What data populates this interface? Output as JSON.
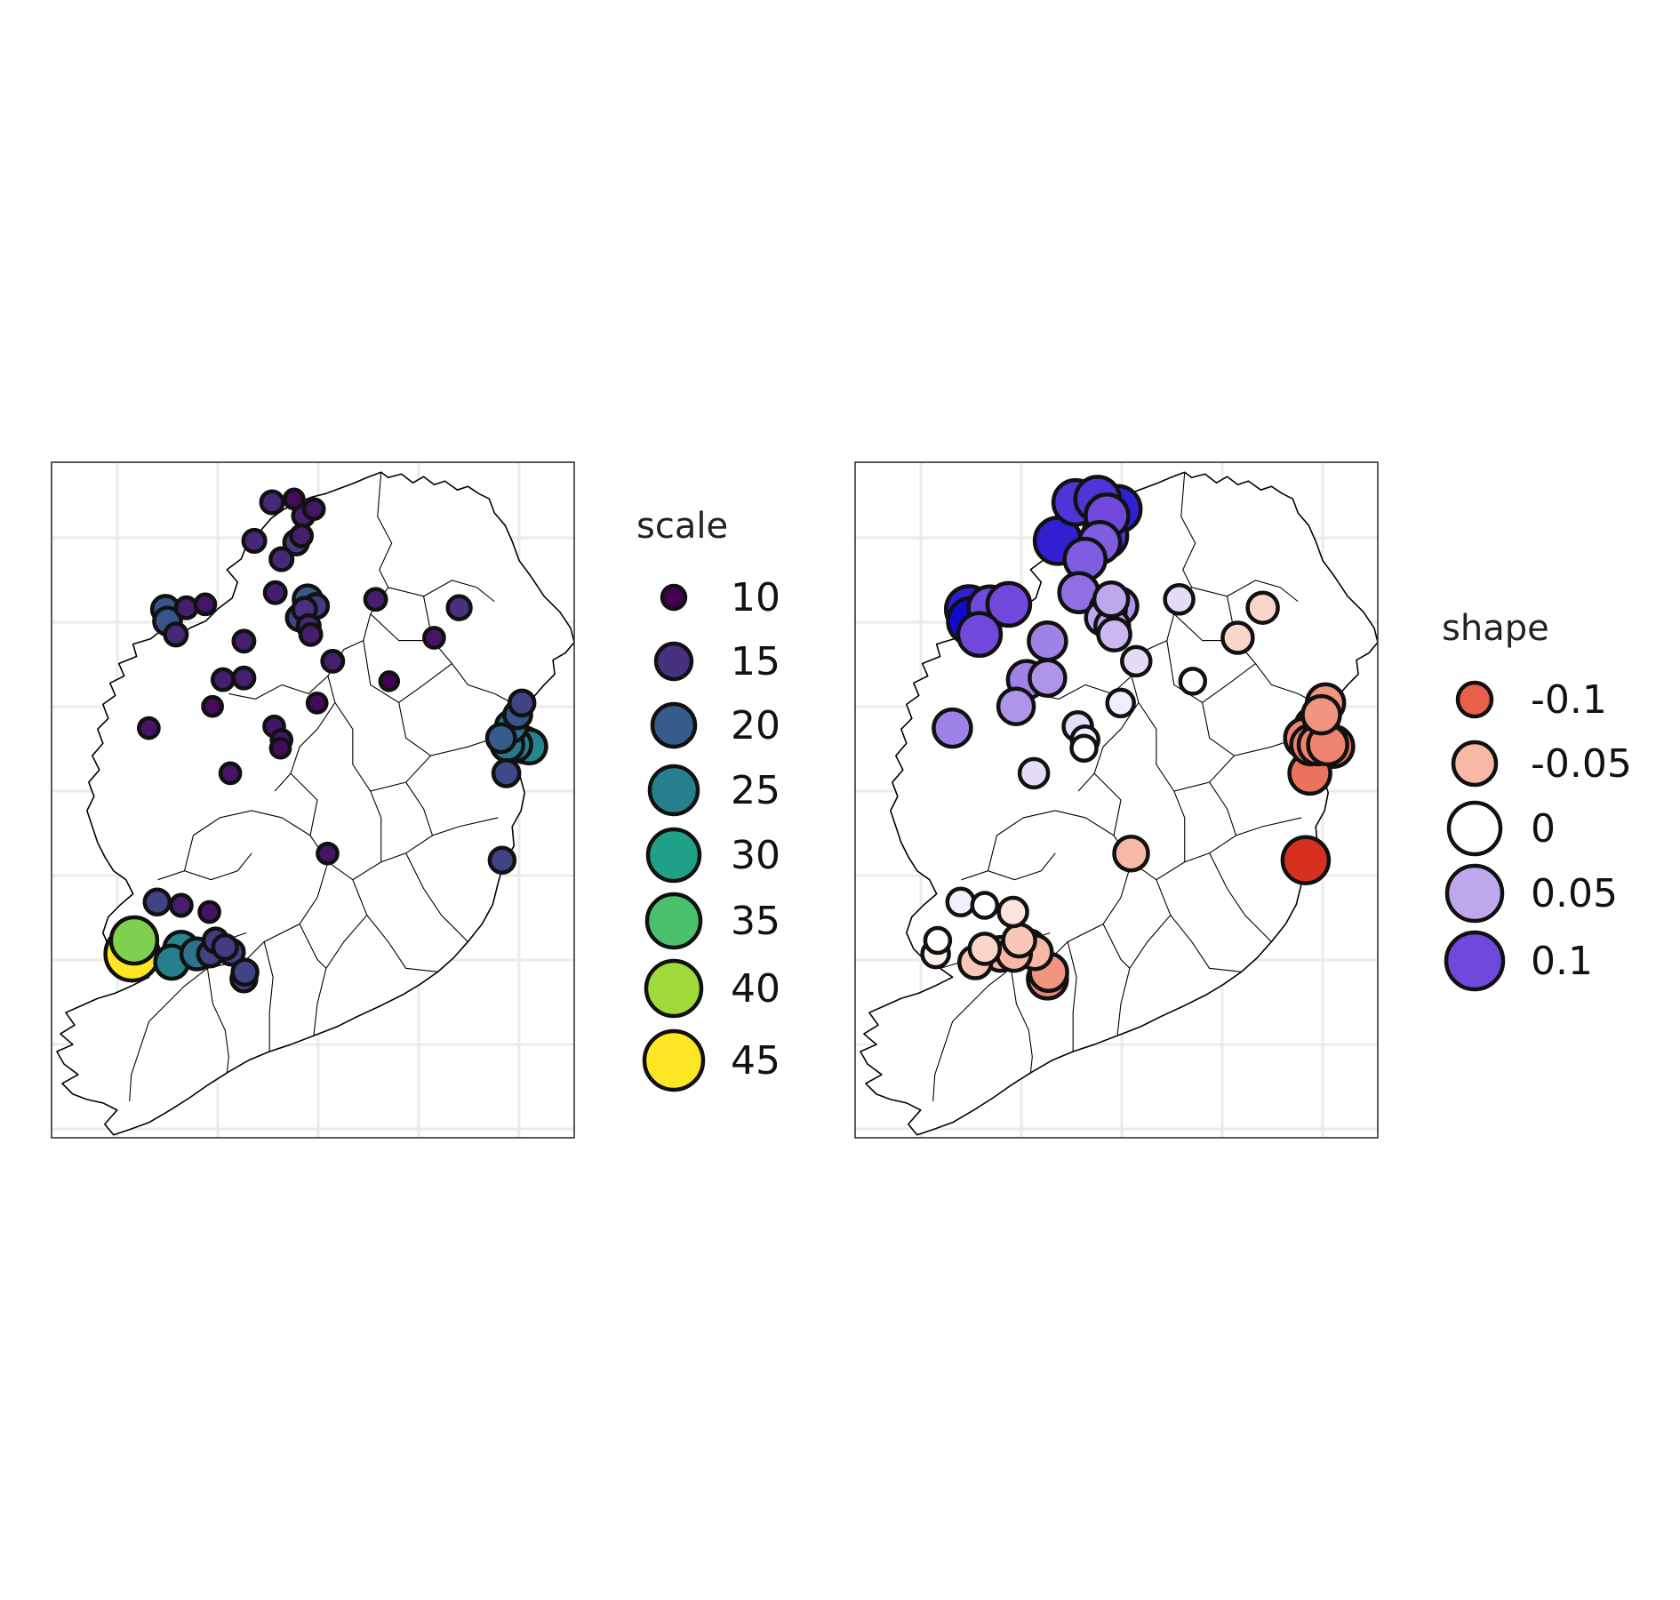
{
  "figure": {
    "panels": [
      {
        "id": "scale",
        "legend": {
          "title": "scale",
          "items": [
            {
              "label": "10",
              "value": 10,
              "color": "#440154"
            },
            {
              "label": "15",
              "value": 15,
              "color": "#46327e"
            },
            {
              "label": "20",
              "value": 20,
              "color": "#365c8d"
            },
            {
              "label": "25",
              "value": 25,
              "color": "#277f8e"
            },
            {
              "label": "30",
              "value": 30,
              "color": "#1fa187"
            },
            {
              "label": "35",
              "value": 35,
              "color": "#4ac16d"
            },
            {
              "label": "40",
              "value": 40,
              "color": "#a0da39"
            },
            {
              "label": "45",
              "value": 45,
              "color": "#fde725"
            }
          ]
        }
      },
      {
        "id": "shape",
        "legend": {
          "title": "shape",
          "items": [
            {
              "label": "-0.1",
              "value": -0.1,
              "color": "#e8604a"
            },
            {
              "label": "-0.05",
              "value": -0.05,
              "color": "#f7b9a6"
            },
            {
              "label": "0",
              "value": 0,
              "color": "#ffffff"
            },
            {
              "label": "0.05",
              "value": 0.05,
              "color": "#bda8ee"
            },
            {
              "label": "0.1",
              "value": 0.1,
              "color": "#7049dc"
            }
          ]
        }
      }
    ]
  },
  "chart_data": {
    "type": "scatter",
    "map": "Ireland (bubble map of stations)",
    "stations": [
      {
        "lon": -8.49,
        "lat": 55.18,
        "scale": 14,
        "shape": 0.11
      },
      {
        "lon": -8.28,
        "lat": 55.2,
        "scale": 11,
        "shape": 0.11
      },
      {
        "lon": -8.19,
        "lat": 55.1,
        "scale": 13,
        "shape": 0.1
      },
      {
        "lon": -8.21,
        "lat": 54.98,
        "scale": 13,
        "shape": 0.11
      },
      {
        "lon": -8.66,
        "lat": 54.95,
        "scale": 14,
        "shape": 0.12
      },
      {
        "lon": -8.26,
        "lat": 54.94,
        "scale": 16,
        "shape": 0.09
      },
      {
        "lon": -8.4,
        "lat": 54.84,
        "scale": 14,
        "shape": 0.09
      },
      {
        "lon": -8.09,
        "lat": 55.14,
        "scale": 12,
        "shape": 0.12
      },
      {
        "lon": -8.46,
        "lat": 54.64,
        "scale": 13,
        "shape": 0.08
      },
      {
        "lon": -8.07,
        "lat": 54.56,
        "scale": 16,
        "shape": 0.06
      },
      {
        "lon": -8.18,
        "lat": 54.54,
        "scale": 15,
        "shape": 0.06
      },
      {
        "lon": -8.23,
        "lat": 54.49,
        "scale": 17,
        "shape": 0.05
      },
      {
        "lon": -8.14,
        "lat": 54.44,
        "scale": 14,
        "shape": 0.05
      },
      {
        "lon": -8.12,
        "lat": 54.39,
        "scale": 13,
        "shape": 0.04
      },
      {
        "lon": -8.15,
        "lat": 54.6,
        "scale": 20,
        "shape": 0.05
      },
      {
        "lon": -7.5,
        "lat": 54.6,
        "scale": 13,
        "shape": 0.02
      },
      {
        "lon": -6.7,
        "lat": 54.55,
        "scale": 15,
        "shape": -0.03
      },
      {
        "lon": -6.94,
        "lat": 54.37,
        "scale": 12,
        "shape": -0.03
      },
      {
        "lon": -9.51,
        "lat": 54.54,
        "scale": 19,
        "shape": 0.12
      },
      {
        "lon": -9.49,
        "lat": 54.47,
        "scale": 19,
        "shape": 0.13
      },
      {
        "lon": -9.31,
        "lat": 54.55,
        "scale": 13,
        "shape": 0.1
      },
      {
        "lon": -9.13,
        "lat": 54.57,
        "scale": 12,
        "shape": 0.1
      },
      {
        "lon": -9.41,
        "lat": 54.39,
        "scale": 14,
        "shape": 0.1
      },
      {
        "lon": -8.76,
        "lat": 54.35,
        "scale": 13,
        "shape": 0.07
      },
      {
        "lon": -8.96,
        "lat": 54.12,
        "scale": 13,
        "shape": 0.07
      },
      {
        "lon": -8.76,
        "lat": 54.13,
        "scale": 13,
        "shape": 0.06
      },
      {
        "lon": -9.06,
        "lat": 53.96,
        "scale": 11,
        "shape": 0.06
      },
      {
        "lon": -9.67,
        "lat": 53.83,
        "scale": 12,
        "shape": 0.07
      },
      {
        "lon": -7.91,
        "lat": 54.23,
        "scale": 13,
        "shape": 0.02
      },
      {
        "lon": -7.37,
        "lat": 54.11,
        "scale": 10,
        "shape": 0.0
      },
      {
        "lon": -8.06,
        "lat": 53.98,
        "scale": 11,
        "shape": 0.01
      },
      {
        "lon": -8.47,
        "lat": 53.84,
        "scale": 12,
        "shape": 0.02
      },
      {
        "lon": -8.4,
        "lat": 53.76,
        "scale": 12,
        "shape": 0.01
      },
      {
        "lon": -8.41,
        "lat": 53.71,
        "scale": 11,
        "shape": 0.0
      },
      {
        "lon": -8.89,
        "lat": 53.56,
        "scale": 12,
        "shape": 0.02
      },
      {
        "lon": -6.1,
        "lat": 53.98,
        "scale": 17,
        "shape": -0.07
      },
      {
        "lon": -6.14,
        "lat": 53.91,
        "scale": 19,
        "shape": -0.07
      },
      {
        "lon": -6.2,
        "lat": 53.84,
        "scale": 23,
        "shape": -0.08
      },
      {
        "lon": -6.3,
        "lat": 53.77,
        "scale": 20,
        "shape": -0.08
      },
      {
        "lon": -6.24,
        "lat": 53.73,
        "scale": 24,
        "shape": -0.08
      },
      {
        "lon": -6.17,
        "lat": 53.73,
        "scale": 25,
        "shape": -0.08
      },
      {
        "lon": -6.08,
        "lat": 53.73,
        "scale": 27,
        "shape": -0.08
      },
      {
        "lon": -6.03,
        "lat": 53.72,
        "scale": 26,
        "shape": -0.09
      },
      {
        "lon": -6.25,
        "lat": 53.56,
        "scale": 18,
        "shape": -0.09
      },
      {
        "lon": -6.29,
        "lat": 53.04,
        "scale": 17,
        "shape": -0.12
      },
      {
        "lon": -7.96,
        "lat": 53.08,
        "scale": 12,
        "shape": -0.05
      },
      {
        "lon": -9.59,
        "lat": 52.79,
        "scale": 17,
        "shape": 0.01
      },
      {
        "lon": -9.36,
        "lat": 52.77,
        "scale": 13,
        "shape": 0.0
      },
      {
        "lon": -9.09,
        "lat": 52.73,
        "scale": 12,
        "shape": -0.02
      },
      {
        "lon": -9.03,
        "lat": 52.56,
        "scale": 16,
        "shape": -0.04
      },
      {
        "lon": -8.94,
        "lat": 52.52,
        "scale": 16,
        "shape": -0.05
      },
      {
        "lon": -8.88,
        "lat": 52.49,
        "scale": 17,
        "shape": -0.05
      },
      {
        "lon": -9.21,
        "lat": 52.48,
        "scale": 23,
        "shape": -0.05
      },
      {
        "lon": -9.36,
        "lat": 52.51,
        "scale": 26,
        "shape": -0.03
      },
      {
        "lon": -9.83,
        "lat": 52.48,
        "scale": 45,
        "shape": -0.01
      },
      {
        "lon": -9.81,
        "lat": 52.56,
        "scale": 38,
        "shape": 0.0
      },
      {
        "lon": -9.45,
        "lat": 52.43,
        "scale": 25,
        "shape": -0.04
      },
      {
        "lon": -9.08,
        "lat": 52.48,
        "scale": 17,
        "shape": -0.05
      },
      {
        "lon": -8.76,
        "lat": 52.33,
        "scale": 17,
        "shape": -0.08
      },
      {
        "lon": -8.75,
        "lat": 52.37,
        "scale": 17,
        "shape": -0.07
      }
    ]
  }
}
